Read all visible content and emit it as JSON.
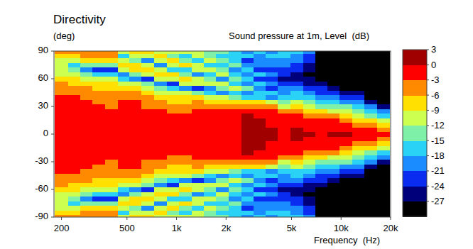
{
  "chart_data": {
    "type": "heatmap",
    "title": "Directivity",
    "y_label": "(deg)",
    "colorbar_label": "Sound pressure at 1m, Level  (dB)",
    "x_label": "Frequency  (Hz)",
    "log": "x",
    "xlim": [
      180,
      20000
    ],
    "ylim": [
      -90,
      90
    ],
    "xticks": [
      200,
      500,
      {
        "value": 1000,
        "label": "1k"
      },
      {
        "value": 2000,
        "label": "2k"
      },
      {
        "value": 5000,
        "label": "5k"
      },
      {
        "value": 10000,
        "label": "10k"
      },
      {
        "value": 20000,
        "label": "20k"
      }
    ],
    "yticks": [
      -90,
      -60,
      -30,
      0,
      30,
      60,
      90
    ],
    "color_range": [
      -30,
      3
    ],
    "color_ticks": [
      3,
      0,
      -3,
      -6,
      -9,
      -12,
      -15,
      -18,
      -21,
      -24,
      -27
    ],
    "colors": [
      "#000000",
      "#00007a",
      "#0a2cf0",
      "#1a8cff",
      "#2ad2f5",
      "#7ef0a8",
      "#ccff50",
      "#ffe000",
      "#ff8a00",
      "#ff0000",
      "#a00000"
    ],
    "x": [
      200,
      240,
      280,
      340,
      400,
      480,
      560,
      670,
      800,
      950,
      1130,
      1350,
      1600,
      1900,
      2260,
      2700,
      3200,
      3800,
      4500,
      5400,
      6400,
      7600,
      9000,
      10700,
      12700,
      15100,
      18000
    ],
    "y": [
      -90,
      -85,
      -80,
      -75,
      -70,
      -65,
      -60,
      -55,
      -50,
      -45,
      -40,
      -35,
      -30,
      -25,
      -20,
      -15,
      -10,
      -5,
      0,
      5,
      10,
      15,
      20,
      25,
      30,
      35,
      40,
      45,
      50,
      55,
      60,
      65,
      70,
      75,
      80,
      85,
      90
    ],
    "values": [
      [
        -4,
        -7,
        -10,
        -12,
        -11,
        -9.5,
        -7.5,
        -6,
        -4.5,
        -3.5,
        -2.5,
        -2,
        -1.5,
        -1.5,
        -1,
        -1,
        -1,
        -1,
        -1,
        -1,
        -1,
        -1,
        -1,
        -1.5,
        -1.5,
        -2,
        -2.5,
        -3.5,
        -4.5,
        -6,
        -7.5,
        -9.5,
        -11,
        -12,
        -10,
        -7,
        -4
      ],
      [
        -4,
        -7,
        -12,
        -17,
        -14,
        -11,
        -8.5,
        -6.5,
        -5,
        -4,
        -3,
        -2,
        -2,
        -1.5,
        -1.5,
        -1,
        -1,
        -1,
        -1,
        -1,
        -1,
        -1,
        -1.5,
        -1.5,
        -2,
        -2,
        -3,
        -4,
        -5,
        -6.5,
        -8.5,
        -11,
        -14,
        -17,
        -12,
        -7,
        -4
      ],
      [
        -4,
        -6,
        -9,
        -14,
        -19,
        -13,
        -10,
        -7.5,
        -6,
        -4.5,
        -3.5,
        -2.5,
        -2,
        -2,
        -1.5,
        -1,
        -1,
        -1,
        -1,
        -1,
        -1,
        -1,
        -1.5,
        -2,
        -2,
        -2.5,
        -3.5,
        -4.5,
        -6,
        -7.5,
        -10,
        -13,
        -19,
        -14,
        -9,
        -6,
        -4
      ],
      [
        -4,
        -5,
        -8,
        -14,
        -23,
        -16,
        -12,
        -9,
        -7,
        -6,
        -4.5,
        -3.5,
        -2.5,
        -2,
        -1.5,
        -1,
        -1,
        -1,
        -1,
        -1,
        -1,
        -1,
        -1.5,
        -2,
        -2.5,
        -3.5,
        -4.5,
        -6,
        -7,
        -9,
        -12,
        -16,
        -23,
        -14,
        -8,
        -5,
        -4
      ],
      [
        -5,
        -6,
        -8,
        -13,
        -22,
        -17,
        -11,
        -9,
        -7.5,
        -6,
        -5,
        -4,
        -3.5,
        -2.5,
        -2,
        -1.5,
        -1,
        -1,
        -1,
        -1,
        -1,
        -1.5,
        -2,
        -2.5,
        -3.5,
        -4,
        -5,
        -6,
        -7.5,
        -9,
        -11,
        -17,
        -22,
        -13,
        -8,
        -6,
        -5
      ],
      [
        -10,
        -18,
        -12,
        -8,
        -10,
        -21,
        -16,
        -10,
        -7,
        -5,
        -3.5,
        -2.5,
        -2,
        -2,
        -1.5,
        -1,
        -1,
        -0.5,
        -0.5,
        -0.5,
        -1,
        -1,
        -1.5,
        -2,
        -2,
        -2.5,
        -3.5,
        -5,
        -7,
        -10,
        -16,
        -21,
        -10,
        -8,
        -12,
        -18,
        -10
      ],
      [
        -8,
        -12,
        -15,
        -9,
        -8,
        -13,
        -20,
        -12,
        -8,
        -6,
        -4,
        -3,
        -2.5,
        -2,
        -2,
        -1.5,
        -1,
        -1,
        -1,
        -1,
        -1,
        -1.5,
        -2,
        -2,
        -2.5,
        -3,
        -4,
        -6,
        -8,
        -12,
        -20,
        -13,
        -8,
        -9,
        -15,
        -12,
        -8
      ],
      [
        -8,
        -11,
        -20,
        -12,
        -8,
        -11,
        -22,
        -14,
        -10,
        -8,
        -6,
        -4.5,
        -3.5,
        -2.5,
        -2,
        -1.5,
        -1,
        -1,
        -1,
        -1,
        -1,
        -1.5,
        -2,
        -2.5,
        -3.5,
        -4.5,
        -6,
        -8,
        -10,
        -14,
        -22,
        -11,
        -8,
        -12,
        -20,
        -11,
        -8
      ],
      [
        -12,
        -9,
        -10,
        -19,
        -11,
        -8,
        -12,
        -21,
        -13,
        -9.5,
        -7,
        -5.5,
        -4.5,
        -3,
        -2.5,
        -2,
        -1,
        -1,
        -1,
        -1,
        -1,
        -2,
        -2.5,
        -3,
        -4.5,
        -5.5,
        -7,
        -9.5,
        -13,
        -21,
        -12,
        -8,
        -11,
        -19,
        -10,
        -9,
        -12
      ],
      [
        -10,
        -15,
        -9,
        -12,
        -16,
        -9,
        -10,
        -22,
        -16,
        -11,
        -8,
        -6.5,
        -5,
        -3.5,
        -2.5,
        -2,
        -1.5,
        -1,
        -1,
        -1,
        -1.5,
        -2,
        -2.5,
        -3.5,
        -5,
        -6.5,
        -8,
        -11,
        -16,
        -22,
        -10,
        -9,
        -16,
        -12,
        -9,
        -15,
        -10
      ],
      [
        -10,
        -17,
        -13,
        -9,
        -18,
        -14,
        -9,
        -12,
        -20,
        -12,
        -8.5,
        -6.5,
        -5,
        -3.5,
        -2.5,
        -2,
        -1.5,
        -1,
        -1,
        -1,
        -1.5,
        -2,
        -2.5,
        -3.5,
        -5,
        -6.5,
        -8.5,
        -12,
        -20,
        -12,
        -9,
        -14,
        -18,
        -9,
        -13,
        -17,
        -10
      ],
      [
        -12,
        -11,
        -18,
        -12,
        -10,
        -19,
        -11,
        -10,
        -22,
        -14,
        -9,
        -6,
        -4,
        -2.5,
        -1.5,
        -1,
        -1,
        -0.5,
        -0.5,
        -0.5,
        -1,
        -1,
        -1.5,
        -2.5,
        -4,
        -6,
        -9,
        -14,
        -22,
        -10,
        -11,
        -19,
        -10,
        -12,
        -18,
        -11,
        -12
      ],
      [
        -15,
        -13,
        -12,
        -16,
        -10,
        -17,
        -15,
        -10,
        -20,
        -16,
        -10,
        -7,
        -4.5,
        -3,
        -2,
        -1.5,
        -1,
        -0.5,
        -0.5,
        -0.5,
        -1,
        -1.5,
        -2,
        -3,
        -4.5,
        -7,
        -10,
        -16,
        -20,
        -10,
        -15,
        -17,
        -10,
        -16,
        -12,
        -13,
        -15
      ],
      [
        -14,
        -16,
        -13,
        -17,
        -15,
        -12,
        -19,
        -11,
        -13,
        -19,
        -11,
        -6.5,
        -4,
        -2.5,
        -2,
        -1.5,
        -1,
        -1,
        -1,
        -1,
        -1,
        -1.5,
        -2,
        -2.5,
        -4,
        -6.5,
        -11,
        -19,
        -13,
        -11,
        -19,
        -12,
        -15,
        -17,
        -13,
        -16,
        -14
      ],
      [
        -17,
        -16,
        -18,
        -14,
        -19,
        -16,
        -15,
        -17,
        -12,
        -18,
        -14,
        -8,
        -4,
        -2.5,
        -1.5,
        -1,
        -0.5,
        -0.5,
        -0.5,
        -0.5,
        -0.5,
        -1,
        -1.5,
        -2.5,
        -4,
        -8,
        -14,
        -18,
        -12,
        -17,
        -15,
        -16,
        -19,
        -14,
        -18,
        -16,
        -17
      ],
      [
        -19,
        -17,
        -22,
        -19,
        -16,
        -21,
        -17,
        -20,
        -15,
        -19,
        -16,
        -8,
        -3.5,
        -1.5,
        0,
        0.5,
        1,
        1.5,
        1.5,
        1.5,
        1,
        0.5,
        0,
        -1.5,
        -3.5,
        -8,
        -16,
        -19,
        -15,
        -20,
        -17,
        -21,
        -16,
        -19,
        -22,
        -17,
        -19
      ],
      [
        -18,
        -20,
        -21,
        -19,
        -23,
        -18,
        -22,
        -17,
        -21,
        -16,
        -17,
        -9,
        -4.5,
        -2,
        -0.5,
        0.5,
        1,
        1.5,
        1.5,
        1.5,
        1,
        0.5,
        -0.5,
        -2,
        -4.5,
        -9,
        -17,
        -16,
        -21,
        -17,
        -22,
        -18,
        -23,
        -19,
        -21,
        -20,
        -18
      ],
      [
        -19,
        -18,
        -21,
        -19,
        -22,
        -20,
        -24,
        -19,
        -22,
        -17,
        -19,
        -12,
        -6,
        -3,
        -1.5,
        -1,
        -0.5,
        0,
        0.5,
        0,
        -0.5,
        -1,
        -1.5,
        -3,
        -6,
        -12,
        -19,
        -17,
        -22,
        -19,
        -24,
        -20,
        -22,
        -19,
        -21,
        -18,
        -19
      ],
      [
        -17,
        -18,
        -19,
        -20,
        -24,
        -22,
        -25,
        -23,
        -19,
        -20,
        -18,
        -15,
        -10,
        -6,
        -3,
        -1.5,
        -1,
        -1,
        -1,
        -1,
        -1,
        -1.5,
        -3,
        -6,
        -10,
        -15,
        -18,
        -20,
        -19,
        -23,
        -25,
        -22,
        -24,
        -20,
        -19,
        -18,
        -17
      ],
      [
        -18,
        -19,
        -20,
        -22,
        -24,
        -26,
        -25,
        -22,
        -20,
        -18,
        -16,
        -12,
        -8,
        -5,
        -3,
        -1.5,
        -0.5,
        0.5,
        1,
        0.5,
        -0.5,
        -1.5,
        -3,
        -5,
        -8,
        -12,
        -16,
        -18,
        -20,
        -22,
        -25,
        -26,
        -24,
        -22,
        -20,
        -19,
        -18
      ],
      [
        -21,
        -22,
        -23,
        -25,
        -27,
        -28,
        -27,
        -25,
        -23,
        -20,
        -18,
        -15,
        -11,
        -7,
        -4,
        -2,
        -1,
        -0.5,
        0,
        -0.5,
        -1,
        -2,
        -4,
        -7,
        -11,
        -15,
        -18,
        -20,
        -23,
        -25,
        -27,
        -28,
        -27,
        -25,
        -23,
        -22,
        -21
      ],
      [
        -28,
        -28,
        -29,
        -30,
        -30,
        -30,
        -28,
        -26,
        -24,
        -22,
        -19,
        -16,
        -13,
        -9,
        -5.5,
        -3,
        -1.5,
        -1,
        -0.5,
        -1,
        -1.5,
        -3,
        -5.5,
        -9,
        -13,
        -16,
        -19,
        -22,
        -24,
        -26,
        -28,
        -30,
        -30,
        -30,
        -29,
        -28,
        -28
      ],
      [
        -32,
        -32,
        -32,
        -32,
        -32,
        -31,
        -31,
        -29,
        -27,
        -24,
        -21,
        -18,
        -14,
        -10,
        -6,
        -3,
        -1.5,
        -0.5,
        0.5,
        -0.5,
        -1.5,
        -3,
        -6,
        -10,
        -14,
        -18,
        -21,
        -24,
        -27,
        -29,
        -31,
        -31,
        -32,
        -32,
        -32,
        -32,
        -32
      ],
      [
        -33,
        -33,
        -33,
        -33,
        -33,
        -33,
        -32,
        -31,
        -28,
        -25,
        -22,
        -19,
        -15,
        -11,
        -8,
        -5,
        -2,
        -0.5,
        0.5,
        -0.5,
        -2,
        -5,
        -8,
        -11,
        -15,
        -19,
        -22,
        -25,
        -28,
        -31,
        -32,
        -33,
        -33,
        -33,
        -33,
        -33,
        -33
      ],
      [
        -33,
        -33,
        -33,
        -33,
        -33,
        -33,
        -33,
        -32,
        -30,
        -27,
        -24,
        -21,
        -17,
        -14,
        -10,
        -6.5,
        -4,
        -2,
        -1,
        -2,
        -4,
        -6.5,
        -10,
        -14,
        -17,
        -21,
        -24,
        -27,
        -30,
        -32,
        -33,
        -33,
        -33,
        -33,
        -33,
        -33,
        -33
      ],
      [
        -33,
        -33,
        -33,
        -33,
        -33,
        -33,
        -33,
        -33,
        -33,
        -31,
        -28,
        -25,
        -21,
        -17,
        -13,
        -9,
        -5,
        -2.5,
        -1,
        -2.5,
        -5,
        -9,
        -13,
        -17,
        -21,
        -25,
        -28,
        -31,
        -33,
        -33,
        -33,
        -33,
        -33,
        -33,
        -33,
        -33,
        -33
      ],
      [
        -33,
        -33,
        -33,
        -33,
        -33,
        -33,
        -33,
        -33,
        -33,
        -33,
        -32,
        -29,
        -25,
        -21,
        -17,
        -12,
        -8,
        -4,
        -2,
        -4,
        -8,
        -12,
        -17,
        -21,
        -25,
        -29,
        -32,
        -33,
        -33,
        -33,
        -33,
        -33,
        -33,
        -33,
        -33,
        -33,
        -33
      ]
    ]
  }
}
